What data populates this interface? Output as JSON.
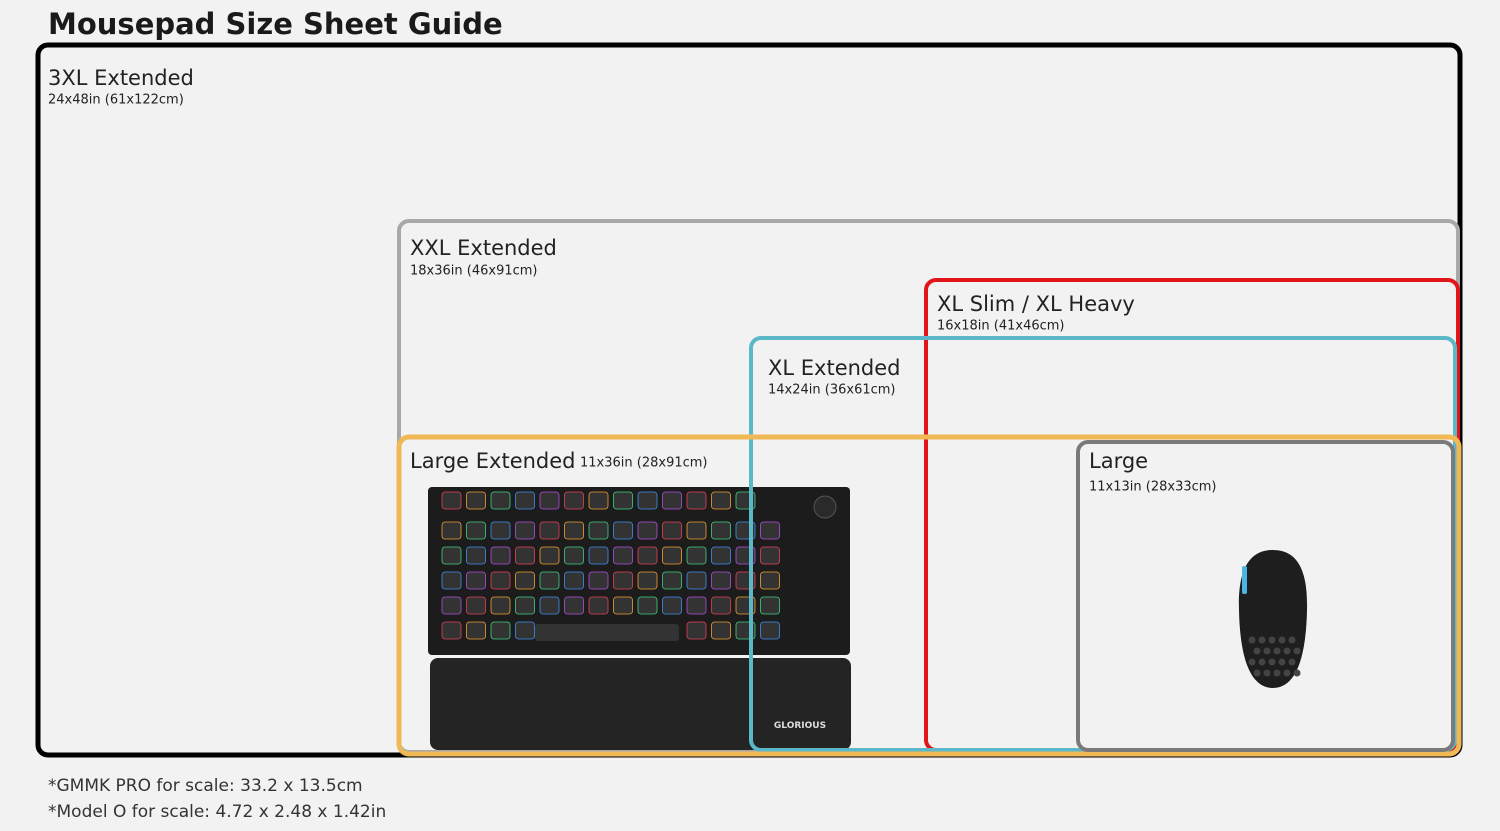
{
  "title": "Mousepad Size Sheet Guide",
  "sizes": [
    {
      "name": "3XL Extended",
      "dims": "24x48in (61x122cm)"
    },
    {
      "name": "XXL Extended",
      "dims": "18x36in (46x91cm)"
    },
    {
      "name": "XL Slim / XL Heavy",
      "dims": "16x18in (41x46cm)"
    },
    {
      "name": "XL Extended",
      "dims": "14x24in (36x61cm)"
    },
    {
      "name": "Large Extended",
      "dims": "11x36in (28x91cm)"
    },
    {
      "name": "Large",
      "dims": "11x13in (28x33cm)"
    }
  ],
  "brand": "GLORIOUS",
  "footnotes": [
    "*GMMK PRO for scale: 33.2 x 13.5cm",
    "*Model O for scale: 4.72 x 2.48 x 1.42in"
  ]
}
